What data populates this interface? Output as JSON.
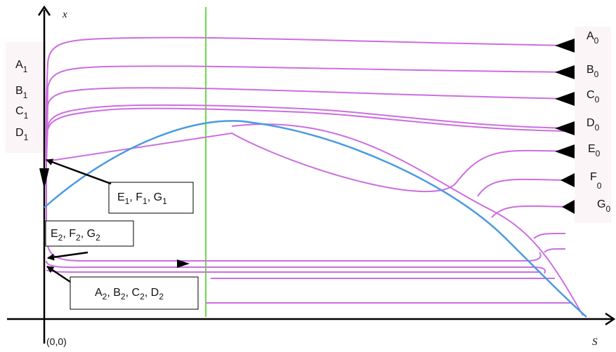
{
  "axes": {
    "x_axis_label": "S",
    "y_axis_label": "x",
    "origin_label": "(0,0)"
  },
  "colors": {
    "trajectory": "#cc6ee0",
    "parabola": "#4a9ae0",
    "vertical_line": "#66dd44",
    "axis": "#000000",
    "label_panel": "#fbf5f8"
  },
  "left_labels": [
    {
      "base": "A",
      "sub": "1"
    },
    {
      "base": "B",
      "sub": "1"
    },
    {
      "base": "C",
      "sub": "1"
    },
    {
      "base": "D",
      "sub": "1"
    }
  ],
  "right_labels": [
    {
      "base": "A",
      "sub": "0"
    },
    {
      "base": "B",
      "sub": "0"
    },
    {
      "base": "C",
      "sub": "0"
    },
    {
      "base": "D",
      "sub": "0"
    },
    {
      "base": "E",
      "sub": "0"
    },
    {
      "base": "F",
      "sub": "0"
    },
    {
      "base": "G",
      "sub": "0"
    }
  ],
  "callouts": [
    {
      "parts": [
        {
          "base": "E",
          "sub": "1"
        },
        {
          "base": "F",
          "sub": "1"
        },
        {
          "base": "G",
          "sub": "1"
        }
      ],
      "separator": ", "
    },
    {
      "parts": [
        {
          "base": "E",
          "sub": "2"
        },
        {
          "base": "F",
          "sub": "2"
        },
        {
          "base": "G",
          "sub": "2"
        }
      ],
      "separator": ", "
    },
    {
      "parts": [
        {
          "base": "A",
          "sub": "2"
        },
        {
          "base": "B",
          "sub": "2"
        },
        {
          "base": "C",
          "sub": "2"
        },
        {
          "base": "D",
          "sub": "2"
        }
      ],
      "separator": ", "
    }
  ]
}
